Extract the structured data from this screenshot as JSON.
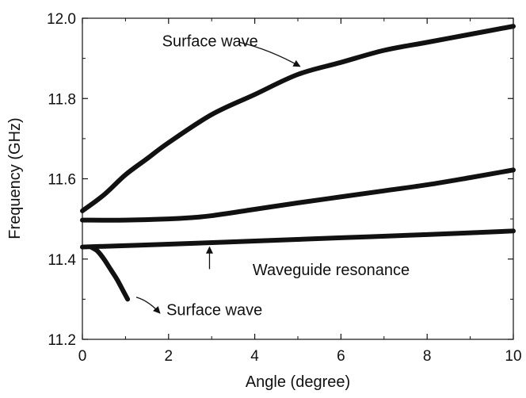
{
  "chart_data": {
    "type": "line",
    "xlabel": "Angle (degree)",
    "ylabel": "Frequency (GHz)",
    "xlim": [
      0,
      10
    ],
    "ylim": [
      11.2,
      12.0
    ],
    "x_ticks": [
      0,
      2,
      4,
      6,
      8,
      10
    ],
    "x_tick_labels": [
      "0",
      "2",
      "4",
      "6",
      "8",
      "10"
    ],
    "y_ticks": [
      11.2,
      11.4,
      11.6,
      11.8,
      12.0
    ],
    "y_tick_labels": [
      "11.2",
      "11.4",
      "11.6",
      "11.8",
      "12.0"
    ],
    "grid": false,
    "legend": "none",
    "line_color": "#111111",
    "series": [
      {
        "x": [
          0,
          0.5,
          1,
          1.5,
          2,
          3,
          4,
          5,
          6,
          7,
          8,
          9,
          10
        ],
        "y": [
          11.52,
          11.56,
          11.61,
          11.65,
          11.69,
          11.76,
          11.81,
          11.86,
          11.89,
          11.92,
          11.94,
          11.96,
          11.98
        ]
      },
      {
        "x": [
          0,
          1,
          2,
          2.5,
          3,
          4,
          5,
          6,
          7,
          8,
          9,
          10
        ],
        "y": [
          11.497,
          11.497,
          11.5,
          11.503,
          11.508,
          11.524,
          11.54,
          11.555,
          11.57,
          11.585,
          11.603,
          11.622
        ]
      },
      {
        "x": [
          0,
          2,
          4,
          6,
          8,
          10
        ],
        "y": [
          11.43,
          11.437,
          11.445,
          11.453,
          11.461,
          11.47
        ]
      },
      {
        "x": [
          0.2,
          0.35,
          0.5,
          0.65,
          0.8,
          0.95,
          1.05
        ],
        "y": [
          11.43,
          11.42,
          11.4,
          11.375,
          11.35,
          11.32,
          11.3
        ]
      }
    ],
    "annotations": [
      {
        "text": "Surface wave",
        "label_pos": [
          1.85,
          11.93
        ],
        "arrow_from": [
          3.65,
          11.94
        ],
        "arrow_to": [
          5.05,
          11.88
        ]
      },
      {
        "text": "Waveguide resonance",
        "label_pos": [
          3.95,
          11.36
        ],
        "arrow_from": [
          2.95,
          11.375
        ],
        "arrow_to": [
          2.95,
          11.43
        ]
      },
      {
        "text": "Surface wave",
        "label_pos": [
          1.95,
          11.26
        ],
        "arrow_from": [
          1.25,
          11.305
        ],
        "arrow_to": [
          1.8,
          11.265
        ]
      }
    ]
  }
}
